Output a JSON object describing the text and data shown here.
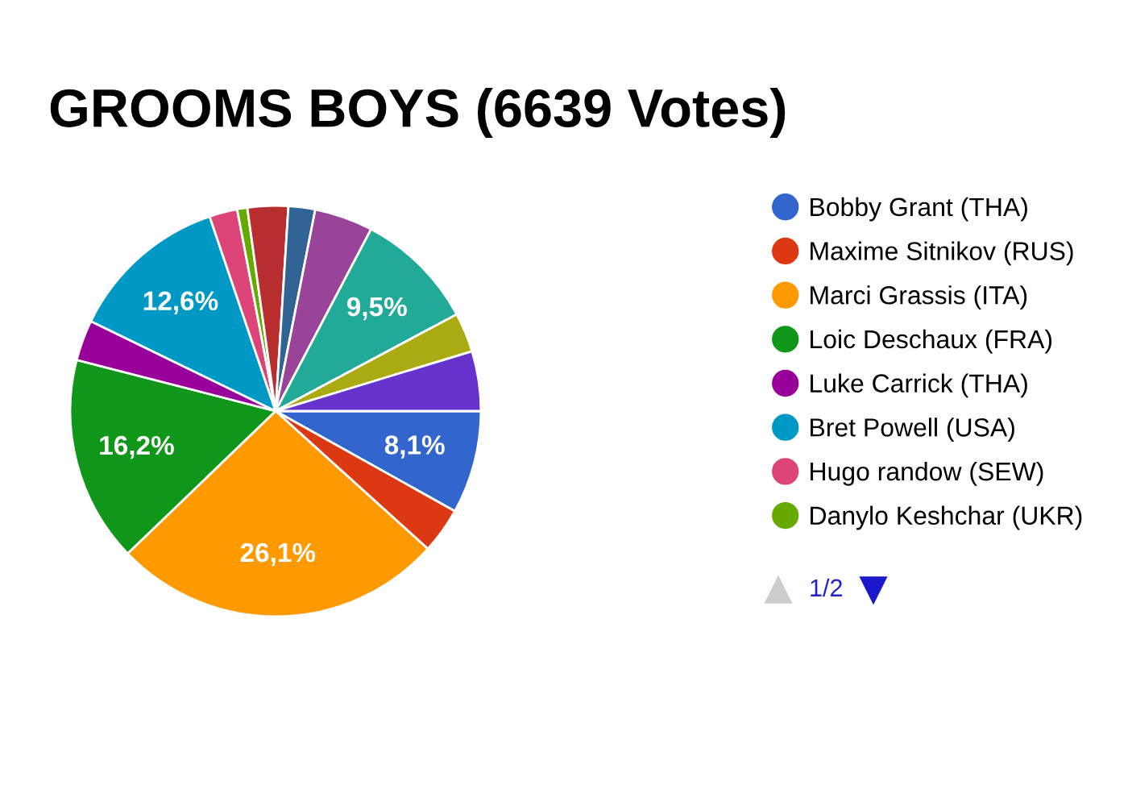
{
  "chart_data": {
    "type": "pie",
    "title": "GROOMS BOYS (6639 Votes)",
    "categories": [
      "Bobby Grant (THA)",
      "Maxime Sitnikov (RUS)",
      "Marci Grassis (ITA)",
      "Loic Deschaux (FRA)",
      "Luke Carrick (THA)",
      "Bret Powell (USA)",
      "Hugo randow (SEW)",
      "Danylo Keshchar (UKR)",
      null,
      null,
      null,
      null,
      null,
      null
    ],
    "values": [
      8.1,
      3.6,
      26.1,
      16.2,
      3.2,
      12.6,
      2.2,
      0.8,
      3.2,
      2.1,
      4.6,
      9.5,
      3.1,
      4.7
    ],
    "value_labels": [
      "8,1%",
      null,
      "26,1%",
      "16,2%",
      null,
      "12,6%",
      null,
      null,
      null,
      null,
      null,
      "9,5%",
      null,
      null
    ],
    "colors": [
      "#3366cc",
      "#dc3912",
      "#ff9900",
      "#109618",
      "#990099",
      "#0099c6",
      "#dd4477",
      "#66aa00",
      "#b82e2e",
      "#316395",
      "#994499",
      "#22aa99",
      "#aaaa11",
      "#6633cc"
    ],
    "legend": "right",
    "annotations": [
      "1/2"
    ]
  }
}
